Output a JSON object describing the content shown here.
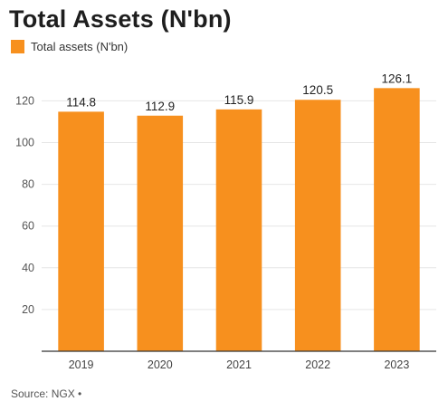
{
  "title": "Total Assets (N'bn)",
  "legend": {
    "label": "Total assets (N'bn)",
    "color": "#F7901E"
  },
  "source": "Source: NGX •",
  "chart_data": {
    "type": "bar",
    "title": "Total Assets (N'bn)",
    "categories": [
      "2019",
      "2020",
      "2021",
      "2022",
      "2023"
    ],
    "series": [
      {
        "name": "Total assets (N'bn)",
        "values": [
          114.8,
          112.9,
          115.9,
          120.5,
          126.1
        ],
        "color": "#F7901E"
      }
    ],
    "data_labels": [
      "114.8",
      "112.9",
      "115.9",
      "120.5",
      "126.1"
    ],
    "ylim": [
      0,
      130
    ],
    "yticks": [
      20,
      40,
      60,
      80,
      100,
      120
    ],
    "grid": true,
    "legend_position": "top-left"
  }
}
